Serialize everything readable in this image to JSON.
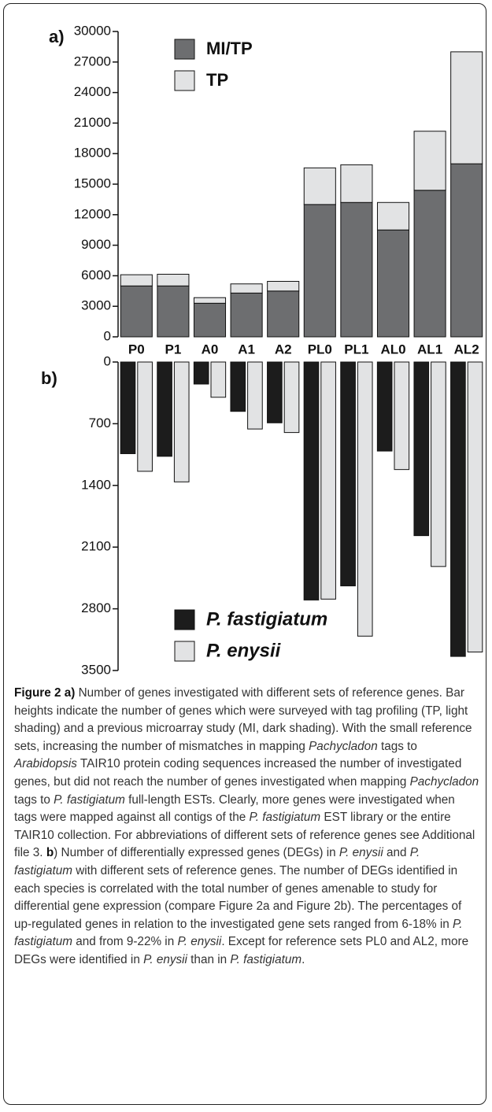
{
  "chart_data": [
    {
      "type": "stacked_bar",
      "panel_label": "a)",
      "categories": [
        "P0",
        "P1",
        "A0",
        "A1",
        "A2",
        "PL0",
        "PL1",
        "AL0",
        "AL1",
        "AL2"
      ],
      "series": [
        {
          "name": "MI/TP",
          "color": "#6d6e70",
          "values": [
            5000,
            5000,
            3300,
            4300,
            4500,
            13000,
            13200,
            10500,
            14400,
            17000
          ]
        },
        {
          "name": "TP",
          "color": "#e2e3e4",
          "values": [
            1100,
            1150,
            550,
            900,
            950,
            3600,
            3700,
            2700,
            5800,
            11000
          ]
        }
      ],
      "ylim": [
        0,
        30000
      ],
      "yticks": [
        0,
        3000,
        6000,
        9000,
        12000,
        15000,
        18000,
        21000,
        24000,
        27000,
        30000
      ]
    },
    {
      "type": "bar",
      "panel_label": "b)",
      "y_inverted": true,
      "series": [
        {
          "name": "P. fastigiatum",
          "color": "#1c1c1c",
          "values": [
            1040,
            1070,
            250,
            560,
            690,
            2700,
            2540,
            1010,
            1970,
            3340
          ]
        },
        {
          "name": "P. enysii",
          "color": "#e2e3e4",
          "values": [
            1240,
            1360,
            400,
            760,
            800,
            2690,
            3110,
            1220,
            2320,
            3290
          ]
        }
      ],
      "ylim": [
        0,
        3500
      ],
      "yticks": [
        0,
        700,
        1400,
        2100,
        2800,
        3500
      ]
    }
  ],
  "caption": [
    {
      "text": "Figure 2 a)",
      "style": "bold"
    },
    {
      "text": " Number of genes investigated with different sets of reference genes. Bar heights indicate the number of genes which were surveyed with tag profiling (TP, light shading) and a previous microarray study (MI, dark shading). With the small reference sets, increasing the number of mismatches in mapping "
    },
    {
      "text": "Pachycladon",
      "style": "italic"
    },
    {
      "text": " tags to "
    },
    {
      "text": "Arabidopsis",
      "style": "italic"
    },
    {
      "text": " TAIR10 protein coding sequences increased the number of investigated genes, but did not reach the number of genes investigated when mapping "
    },
    {
      "text": "Pachycladon",
      "style": "italic"
    },
    {
      "text": " tags to "
    },
    {
      "text": "P. fastigiatum",
      "style": "italic"
    },
    {
      "text": " full-length ESTs. Clearly, more genes were investigated when tags were mapped against all contigs of the "
    },
    {
      "text": "P. fastigiatum",
      "style": "italic"
    },
    {
      "text": " EST library or the entire TAIR10 collection. For abbreviations of different sets of reference genes see Additional file 3. "
    },
    {
      "text": "b",
      "style": "bold"
    },
    {
      "text": ") Number of differentially expressed genes (DEGs) in "
    },
    {
      "text": "P. enysii",
      "style": "italic"
    },
    {
      "text": " and "
    },
    {
      "text": "P. fastigiatum",
      "style": "italic"
    },
    {
      "text": " with different sets of reference genes. The number of DEGs identified in each species is correlated with the total number of genes amenable to study for differential gene expression (compare Figure 2a and Figure 2b). The percentages of up-regulated genes in relation to the investigated gene sets ranged from 6-18% in "
    },
    {
      "text": "P. fastigiatum",
      "style": "italic"
    },
    {
      "text": " and from 9-22% in "
    },
    {
      "text": "P. enysii",
      "style": "italic"
    },
    {
      "text": ". Except for reference sets PL0 and AL2, more DEGs were identified in "
    },
    {
      "text": "P. enysii",
      "style": "italic"
    },
    {
      "text": " than in "
    },
    {
      "text": "P. fastigiatum",
      "style": "italic"
    },
    {
      "text": "."
    }
  ]
}
